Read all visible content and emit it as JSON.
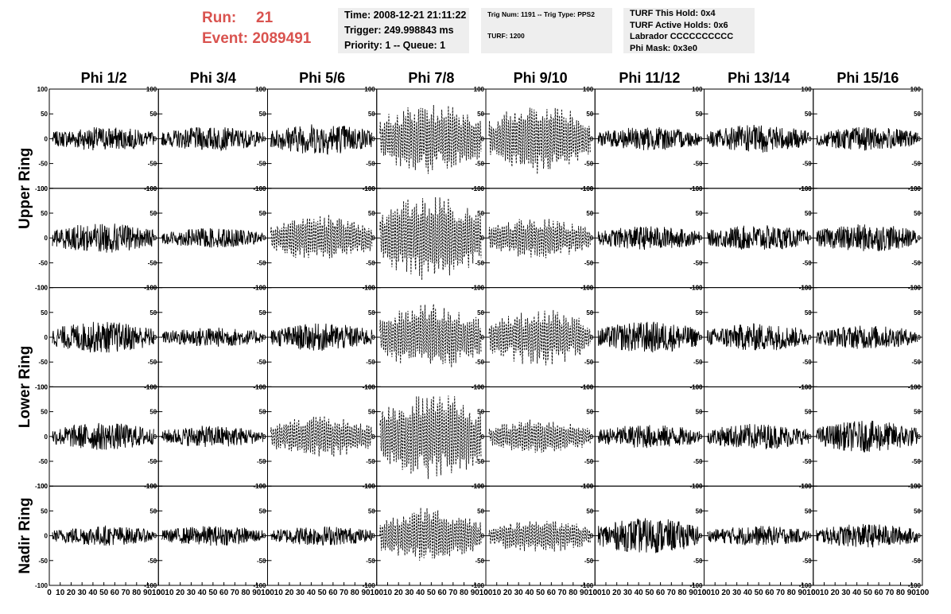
{
  "header": {
    "run_label": "Run:",
    "run_value": "21",
    "event_label": "Event:",
    "event_value": "2089491",
    "time": "Time: 2008-12-21 21:11:22",
    "trigger": "Trigger: 249.998843 ms",
    "priority": "Priority: 1 -- Queue: 1",
    "trig_num": "Trig Num: 1191 -- Trig Type: PPS2",
    "turf": "TURF: 1200",
    "turf_hold": "TURF This Hold: 0x4",
    "turf_active": "TURF Active Holds: 0x6",
    "labrador": "Labrador CCCCCCCCCC",
    "phi_mask": "Phi Mask: 0x3e0"
  },
  "colors": {
    "run_text": "#d9534f",
    "box_bg": "#eeeeee",
    "trace": "#000000"
  },
  "chart_data": {
    "type": "line",
    "columns": [
      "Phi 1/2",
      "Phi 3/4",
      "Phi 5/6",
      "Phi 7/8",
      "Phi 9/10",
      "Phi 11/12",
      "Phi 13/14",
      "Phi 15/16"
    ],
    "ring_labels": [
      "Upper Ring",
      "Lower Ring",
      "Nadir Ring"
    ],
    "rows": 5,
    "xlim": [
      0,
      100
    ],
    "ylim": [
      -100,
      100
    ],
    "x_ticks": [
      "0",
      "10",
      "20",
      "30",
      "40",
      "50",
      "60",
      "70",
      "80",
      "90",
      "100"
    ],
    "y_ticks": [
      "100",
      "50",
      "0",
      "-50",
      "-100"
    ],
    "trace_amplitude": [
      [
        12,
        12,
        16,
        38,
        38,
        12,
        14,
        12
      ],
      [
        15,
        10,
        25,
        45,
        22,
        12,
        13,
        14
      ],
      [
        16,
        10,
        14,
        35,
        30,
        16,
        14,
        12
      ],
      [
        14,
        11,
        22,
        48,
        18,
        12,
        13,
        16
      ],
      [
        10,
        10,
        10,
        30,
        18,
        18,
        10,
        12
      ]
    ],
    "dashed_panels": [
      [
        0,
        3
      ],
      [
        0,
        4
      ],
      [
        1,
        2
      ],
      [
        1,
        3
      ],
      [
        1,
        4
      ],
      [
        2,
        3
      ],
      [
        2,
        4
      ],
      [
        3,
        2
      ],
      [
        3,
        3
      ],
      [
        3,
        4
      ],
      [
        4,
        3
      ],
      [
        4,
        4
      ]
    ]
  }
}
